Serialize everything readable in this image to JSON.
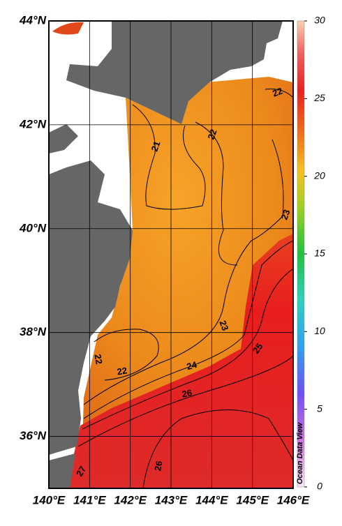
{
  "map": {
    "lonlim": [
      140,
      146
    ],
    "latlim": [
      35,
      44
    ],
    "lon_ticks": [
      {
        "value": 140,
        "label": "140°E"
      },
      {
        "value": 141,
        "label": "141°E"
      },
      {
        "value": 142,
        "label": "142°E"
      },
      {
        "value": 143,
        "label": "143°E"
      },
      {
        "value": 144,
        "label": "144°E"
      },
      {
        "value": 145,
        "label": "145°E"
      },
      {
        "value": 146,
        "label": "146°E"
      }
    ],
    "lat_ticks": [
      {
        "value": 36,
        "label": "36°N"
      },
      {
        "value": 38,
        "label": "38°N"
      },
      {
        "value": 40,
        "label": "40°N"
      },
      {
        "value": 42,
        "label": "42°N"
      },
      {
        "value": 44,
        "label": "44°N"
      }
    ],
    "colorbar": {
      "lim": [
        0,
        30
      ],
      "ticks": [
        0,
        5,
        10,
        15,
        20,
        25,
        30
      ]
    },
    "contour_labels": [
      "22",
      "21",
      "22",
      "23",
      "22",
      "22",
      "24",
      "23",
      "25",
      "26",
      "27",
      "26"
    ],
    "watermark": "Ocean Data View"
  }
}
